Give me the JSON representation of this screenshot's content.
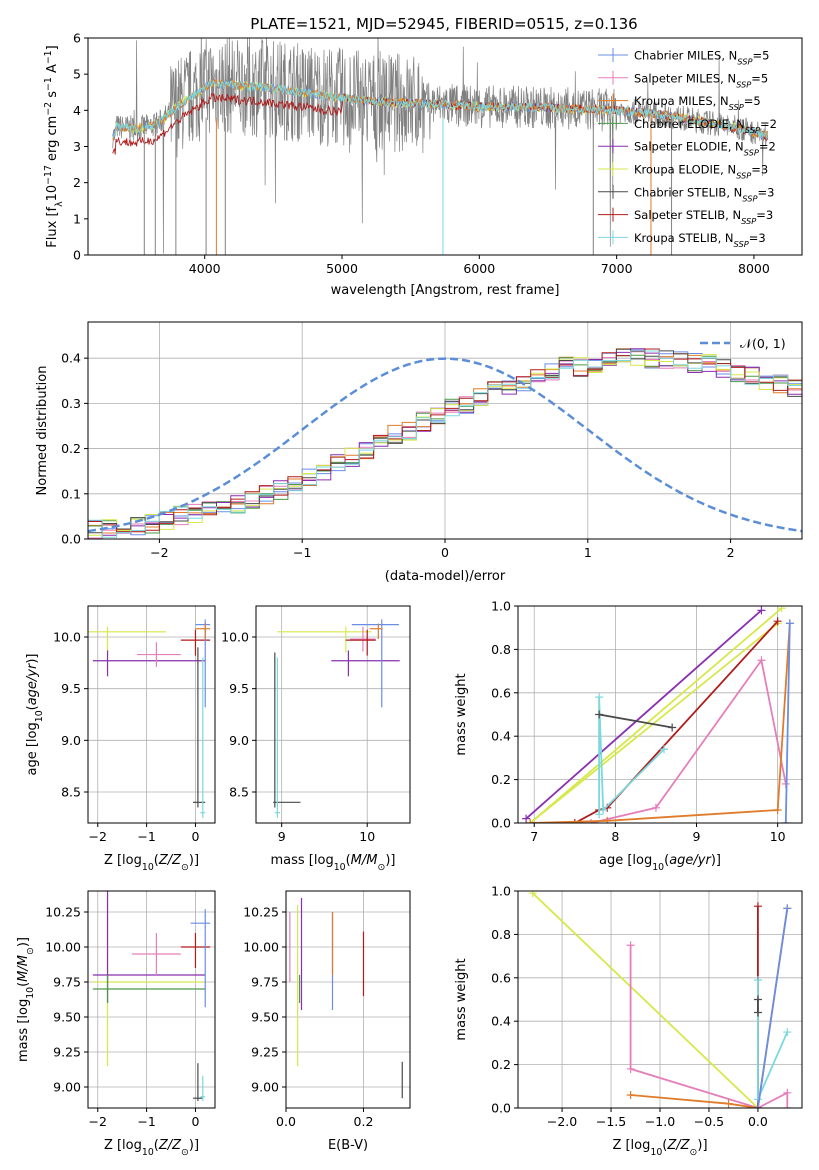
{
  "title": "PLATE=1521, MJD=52945, FIBERID=0515, z=0.136",
  "colors": {
    "Chabrier MILES": "#6a8de6",
    "Salpeter MILES": "#e57fbb",
    "Kroupa MILES": "#e07b2a",
    "Chabrier ELODIE": "#4a9a4a",
    "Salpeter ELODIE": "#8a2fb0",
    "Kroupa ELODIE": "#d6e84a",
    "Chabrier STELIB": "#4a4a4a",
    "Salpeter STELIB": "#b01c1c",
    "Kroupa STELIB": "#7ad8de",
    "data": "#808080",
    "normal": "#5b8ed6"
  },
  "chart_data": [
    {
      "id": "spectrum",
      "type": "line",
      "xlabel": "wavelength [Angstrom, rest frame]",
      "ylabel": "Flux [f_λ10^-17 erg cm^-2 s^-1 A^-1]",
      "xlim": [
        3150,
        8350
      ],
      "ylim": [
        0,
        6
      ],
      "xticks": [
        4000,
        5000,
        6000,
        7000,
        8000
      ],
      "yticks": [
        0,
        1,
        2,
        3,
        4,
        5,
        6
      ],
      "legend": [
        {
          "label": "Chabrier MILES, N",
          "sub": "SSP",
          "suffix": "=5"
        },
        {
          "label": "Salpeter MILES, N",
          "sub": "SSP",
          "suffix": "=5"
        },
        {
          "label": "Kroupa MILES, N",
          "sub": "SSP",
          "suffix": "=5"
        },
        {
          "label": "Chabrier ELODIE, N",
          "sub": "SSP",
          "suffix": "=2"
        },
        {
          "label": "Salpeter ELODIE, N",
          "sub": "SSP",
          "suffix": "=2"
        },
        {
          "label": "Kroupa ELODIE, N",
          "sub": "SSP",
          "suffix": "=3"
        },
        {
          "label": "Chabrier STELIB, N",
          "sub": "SSP",
          "suffix": "=3"
        },
        {
          "label": "Salpeter STELIB, N",
          "sub": "SSP",
          "suffix": "=3"
        },
        {
          "label": "Kroupa STELIB, N",
          "sub": "SSP",
          "suffix": "=3"
        }
      ],
      "model_continuum": [
        [
          3350,
          3.55
        ],
        [
          3500,
          3.5
        ],
        [
          3650,
          3.6
        ],
        [
          3800,
          4.1
        ],
        [
          3950,
          4.5
        ],
        [
          4050,
          4.75
        ],
        [
          4200,
          4.7
        ],
        [
          4400,
          4.65
        ],
        [
          4600,
          4.55
        ],
        [
          4800,
          4.45
        ],
        [
          5000,
          4.35
        ],
        [
          5200,
          4.25
        ],
        [
          5500,
          4.2
        ],
        [
          5800,
          4.15
        ],
        [
          6000,
          4.1
        ],
        [
          6300,
          4.1
        ],
        [
          6600,
          4.05
        ],
        [
          7000,
          4.0
        ],
        [
          7300,
          3.9
        ],
        [
          7600,
          3.7
        ],
        [
          7900,
          3.5
        ],
        [
          8100,
          3.3
        ]
      ]
    },
    {
      "id": "residuals",
      "type": "bar",
      "xlabel": "(data-model)/error",
      "ylabel": "Normed distribution",
      "xlim": [
        -2.5,
        2.5
      ],
      "ylim": [
        0,
        0.48
      ],
      "xticks": [
        -2,
        -1,
        0,
        1,
        2
      ],
      "yticks": [
        0.0,
        0.1,
        0.2,
        0.3,
        0.4
      ],
      "legend": "𝒩(0, 1)",
      "bin_width": 0.1,
      "bin_start": -2.5,
      "base_values": [
        0.02,
        0.025,
        0.03,
        0.03,
        0.035,
        0.04,
        0.05,
        0.055,
        0.06,
        0.07,
        0.08,
        0.09,
        0.1,
        0.11,
        0.12,
        0.14,
        0.15,
        0.17,
        0.18,
        0.2,
        0.21,
        0.23,
        0.24,
        0.26,
        0.27,
        0.29,
        0.3,
        0.31,
        0.33,
        0.34,
        0.35,
        0.36,
        0.37,
        0.38,
        0.38,
        0.39,
        0.39,
        0.4,
        0.4,
        0.4,
        0.4,
        0.4,
        0.39,
        0.39,
        0.38,
        0.37,
        0.36,
        0.35,
        0.34,
        0.33,
        0.32,
        0.3,
        0.29,
        0.27,
        0.26,
        0.24,
        0.23,
        0.21,
        0.2,
        0.18,
        0.17,
        0.15,
        0.14,
        0.12,
        0.11,
        0.1,
        0.09,
        0.08,
        0.07,
        0.06,
        0.055,
        0.05,
        0.045,
        0.04,
        0.035,
        0.03,
        0.03,
        0.03,
        0.025,
        0.025
      ]
    },
    {
      "id": "age_vs_Z",
      "type": "scatter",
      "xlabel": "Z [log10(Z/Z⊙)]",
      "ylabel": "age [log10(age/yr)]",
      "xlim": [
        -2.2,
        0.4
      ],
      "ylim": [
        8.2,
        10.3
      ],
      "xticks": [
        -2,
        -1,
        0
      ],
      "yticks": [
        8.5,
        9.0,
        9.5,
        10.0
      ],
      "points": [
        {
          "series": "Kroupa ELODIE",
          "x": -1.8,
          "y": 10.05,
          "xerr": [
            0.5,
            1.2
          ],
          "yerr": [
            0.2,
            0.05
          ]
        },
        {
          "series": "Salpeter ELODIE",
          "x": -1.8,
          "y": 9.77,
          "xerr": [
            0.3,
            2.0
          ],
          "yerr": [
            0.15,
            0.1
          ]
        },
        {
          "series": "Salpeter MILES",
          "x": -0.8,
          "y": 9.83,
          "xerr": [
            0.4,
            0.5
          ],
          "yerr": [
            0.12,
            0.12
          ]
        },
        {
          "series": "Salpeter STELIB",
          "x": 0.0,
          "y": 9.97,
          "xerr": [
            0.3,
            0.3
          ],
          "yerr": [
            0.15,
            0.1
          ]
        },
        {
          "series": "Chabrier STELIB",
          "x": 0.05,
          "y": 8.4,
          "xerr": [
            0.1,
            0.15
          ],
          "yerr": [
            0.05,
            1.5
          ]
        },
        {
          "series": "Chabrier MILES",
          "x": 0.2,
          "y": 10.12,
          "xerr": [
            0.2,
            0.1
          ],
          "yerr": [
            0.8,
            0.05
          ]
        },
        {
          "series": "Kroupa STELIB",
          "x": 0.15,
          "y": 8.3,
          "xerr": [
            0.05,
            0.05
          ],
          "yerr": [
            0.05,
            1.5
          ]
        },
        {
          "series": "Kroupa MILES",
          "x": 0.2,
          "y": 10.08,
          "xerr": [
            0.2,
            0.1
          ],
          "yerr": [
            0.1,
            0.05
          ]
        }
      ]
    },
    {
      "id": "age_vs_mass",
      "type": "scatter",
      "xlabel": "mass [log10(M/M⊙)]",
      "ylabel": "",
      "xlim": [
        8.7,
        10.5
      ],
      "ylim": [
        8.2,
        10.3
      ],
      "xticks": [
        9,
        10
      ],
      "yticks": [
        8.5,
        9.0,
        9.5,
        10.0
      ],
      "points": [
        {
          "series": "Kroupa ELODIE",
          "x": 9.75,
          "y": 10.05,
          "xerr": [
            0.8,
            0.3
          ],
          "yerr": [
            0.2,
            0.05
          ]
        },
        {
          "series": "Salpeter ELODIE",
          "x": 9.78,
          "y": 9.77,
          "xerr": [
            0.2,
            0.6
          ],
          "yerr": [
            0.15,
            0.1
          ]
        },
        {
          "series": "Salpeter MILES",
          "x": 9.95,
          "y": 9.98,
          "xerr": [
            0.15,
            0.15
          ],
          "yerr": [
            0.12,
            0.12
          ]
        },
        {
          "series": "Salpeter STELIB",
          "x": 10.0,
          "y": 9.97,
          "xerr": [
            0.25,
            0.1
          ],
          "yerr": [
            0.15,
            0.1
          ]
        },
        {
          "series": "Chabrier STELIB",
          "x": 8.92,
          "y": 8.4,
          "xerr": [
            0.02,
            0.3
          ],
          "yerr": [
            0.05,
            1.45
          ]
        },
        {
          "series": "Chabrier MILES",
          "x": 10.17,
          "y": 10.12,
          "xerr": [
            0.35,
            0.2
          ],
          "yerr": [
            0.8,
            0.05
          ]
        },
        {
          "series": "Kroupa STELIB",
          "x": 8.95,
          "y": 8.3,
          "xerr": [
            0.03,
            0.03
          ],
          "yerr": [
            0.05,
            1.5
          ]
        },
        {
          "series": "Kroupa MILES",
          "x": 10.13,
          "y": 10.08,
          "xerr": [
            0.1,
            0.05
          ],
          "yerr": [
            0.1,
            0.05
          ]
        }
      ]
    },
    {
      "id": "weight_vs_age",
      "type": "line",
      "xlabel": "age [log10(age/yr)]",
      "ylabel": "mass weight",
      "xlim": [
        6.8,
        10.3
      ],
      "ylim": [
        0,
        1.0
      ],
      "xticks": [
        7,
        8,
        9,
        10
      ],
      "yticks": [
        0.0,
        0.2,
        0.4,
        0.6,
        0.8,
        1.0
      ],
      "series": [
        {
          "name": "Salpeter ELODIE",
          "x": [
            6.9,
            9.8
          ],
          "y": [
            0.02,
            0.98
          ]
        },
        {
          "name": "Kroupa ELODIE",
          "x": [
            6.95,
            10.05
          ],
          "y": [
            0.0,
            0.99
          ]
        },
        {
          "name": "Kroupa ELODIE",
          "x": [
            6.95,
            10.0
          ],
          "y": [
            0.0,
            0.92
          ]
        },
        {
          "name": "Salpeter STELIB",
          "x": [
            7.5,
            7.8,
            7.9,
            10.0
          ],
          "y": [
            0.0,
            0.06,
            0.07,
            0.93
          ]
        },
        {
          "name": "Kroupa STELIB",
          "x": [
            7.8,
            7.8,
            7.85,
            8.6
          ],
          "y": [
            0.04,
            0.58,
            0.06,
            0.34
          ]
        },
        {
          "name": "Chabrier STELIB",
          "x": [
            7.8,
            8.7
          ],
          "y": [
            0.5,
            0.44
          ]
        },
        {
          "name": "Salpeter MILES",
          "x": [
            7.7,
            8.5,
            9.8,
            10.1
          ],
          "y": [
            0.0,
            0.07,
            0.75,
            0.18
          ]
        },
        {
          "name": "Kroupa MILES",
          "x": [
            6.95,
            7.9,
            10.0,
            10.15
          ],
          "y": [
            0.0,
            0.01,
            0.06,
            0.92
          ]
        },
        {
          "name": "Chabrier MILES",
          "x": [
            10.1,
            10.15
          ],
          "y": [
            0.0,
            0.92
          ]
        }
      ]
    },
    {
      "id": "mass_vs_Z",
      "type": "scatter",
      "xlabel": "Z [log10(Z/Z⊙)]",
      "ylabel": "mass [log10(M/M⊙)]",
      "xlim": [
        -2.2,
        0.4
      ],
      "ylim": [
        8.85,
        10.4
      ],
      "xticks": [
        -2,
        -1,
        0
      ],
      "yticks": [
        9.0,
        9.25,
        9.5,
        9.75,
        10.0,
        10.25
      ],
      "points": [
        {
          "series": "Kroupa ELODIE",
          "x": -1.8,
          "y": 9.75,
          "xerr": [
            0.3,
            2.0
          ],
          "yerr": [
            0.6,
            0.55
          ]
        },
        {
          "series": "Salpeter ELODIE",
          "x": -1.8,
          "y": 9.8,
          "xerr": [
            0.3,
            2.0
          ],
          "yerr": [
            0.2,
            0.6
          ]
        },
        {
          "series": "Salpeter MILES",
          "x": -0.8,
          "y": 9.95,
          "xerr": [
            0.5,
            0.5
          ],
          "yerr": [
            0.15,
            0.15
          ]
        },
        {
          "series": "Chabrier ELODIE",
          "x": -1.8,
          "y": 9.7,
          "xerr": [
            0.3,
            2.0
          ],
          "yerr": [
            0.1,
            0.1
          ]
        },
        {
          "series": "Salpeter STELIB",
          "x": 0.0,
          "y": 10.0,
          "xerr": [
            0.3,
            0.3
          ],
          "yerr": [
            0.15,
            0.1
          ]
        },
        {
          "series": "Chabrier MILES",
          "x": 0.2,
          "y": 10.17,
          "xerr": [
            0.3,
            0.1
          ],
          "yerr": [
            0.6,
            0.1
          ]
        },
        {
          "series": "Chabrier STELIB",
          "x": 0.05,
          "y": 8.92,
          "xerr": [
            0.1,
            0.1
          ],
          "yerr": [
            0.02,
            0.25
          ]
        },
        {
          "series": "Kroupa STELIB",
          "x": 0.15,
          "y": 8.93,
          "xerr": [
            0.05,
            0.05
          ],
          "yerr": [
            0.03,
            0.15
          ]
        }
      ]
    },
    {
      "id": "mass_vs_ebv",
      "type": "scatter",
      "xlabel": "E(B-V)",
      "ylabel": "",
      "xlim": [
        0.0,
        0.32
      ],
      "ylim": [
        8.85,
        10.4
      ],
      "xticks": [
        0.0,
        0.2
      ],
      "yticks": [
        9.0,
        9.25,
        9.5,
        9.75,
        10.0,
        10.25
      ],
      "points": [
        {
          "series": "Salpeter MILES",
          "x": 0.01,
          "y": 9.95,
          "yerr": [
            0.2,
            0.3
          ]
        },
        {
          "series": "Kroupa ELODIE",
          "x": 0.03,
          "y": 9.75,
          "yerr": [
            0.6,
            0.55
          ]
        },
        {
          "series": "Salpeter ELODIE",
          "x": 0.04,
          "y": 9.8,
          "yerr": [
            0.25,
            0.55
          ]
        },
        {
          "series": "Chabrier ELODIE",
          "x": 0.035,
          "y": 9.7,
          "yerr": [
            0.1,
            0.1
          ]
        },
        {
          "series": "Chabrier MILES",
          "x": 0.12,
          "y": 9.9,
          "yerr": [
            0.35,
            0.35
          ]
        },
        {
          "series": "Kroupa MILES",
          "x": 0.12,
          "y": 10.05,
          "yerr": [
            0.25,
            0.2
          ]
        },
        {
          "series": "Salpeter STELIB",
          "x": 0.2,
          "y": 9.88,
          "yerr": [
            0.23,
            0.23
          ]
        },
        {
          "series": "Chabrier STELIB",
          "x": 0.3,
          "y": 9.05,
          "yerr": [
            0.13,
            0.13
          ]
        }
      ]
    },
    {
      "id": "weight_vs_Z",
      "type": "line",
      "xlabel": "Z [log10(Z/Z⊙)]",
      "ylabel": "mass weight",
      "xlim": [
        -2.45,
        0.45
      ],
      "ylim": [
        0,
        1.0
      ],
      "xticks": [
        -2.0,
        -1.5,
        -1.0,
        -0.5,
        0.0
      ],
      "yticks": [
        0.0,
        0.2,
        0.4,
        0.6,
        0.8,
        1.0
      ],
      "series": [
        {
          "name": "Kroupa ELODIE",
          "x": [
            -2.3,
            0.0
          ],
          "y": [
            0.99,
            0.0
          ]
        },
        {
          "name": "Salpeter MILES",
          "x": [
            -1.3,
            -1.3,
            0.0,
            0.3,
            0.3
          ],
          "y": [
            0.75,
            0.18,
            0.0,
            0.07,
            0.0
          ]
        },
        {
          "name": "Kroupa MILES",
          "x": [
            -1.3,
            -0.3,
            0.0,
            0.3
          ],
          "y": [
            0.06,
            0.02,
            0.0,
            0.92
          ]
        },
        {
          "name": "Salpeter STELIB",
          "x": [
            0.0,
            0.0
          ],
          "y": [
            0.0,
            0.93
          ]
        },
        {
          "name": "Kroupa STELIB",
          "x": [
            0.0,
            0.0,
            0.3
          ],
          "y": [
            0.59,
            0.04,
            0.35
          ]
        },
        {
          "name": "Chabrier STELIB",
          "x": [
            0.0,
            0.0
          ],
          "y": [
            0.44,
            0.5
          ]
        },
        {
          "name": "Chabrier MILES",
          "x": [
            0.0,
            0.3
          ],
          "y": [
            0.0,
            0.92
          ]
        }
      ]
    }
  ]
}
